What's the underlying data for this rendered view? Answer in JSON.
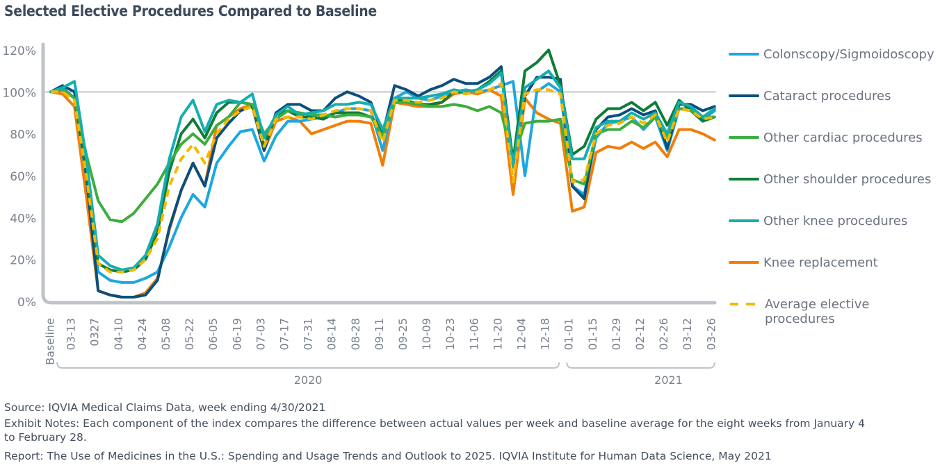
{
  "title": "Selected Elective Procedures Compared to Baseline",
  "footer": {
    "source": "Source: IQVIA Medical Claims Data, week ending 4/30/2021",
    "notes": "Exhibit Notes: Each component of the index compares the difference between actual values per week and baseline average for the eight weeks from January 4 to February 28.",
    "report": "Report: The Use of Medicines in the U.S.: Spending and Usage Trends and Outlook to 2025. IQVIA Institute for Human Data Science, May 2021"
  },
  "chart_data": {
    "type": "line",
    "title": "Selected Elective Procedures Compared to Baseline",
    "xlabel": "",
    "ylabel": "",
    "ylim": [
      0,
      120
    ],
    "yticks": [
      "0%",
      "20%",
      "40%",
      "60%",
      "80%",
      "100%",
      "120%"
    ],
    "ytick_values": [
      0,
      20,
      40,
      60,
      80,
      100,
      120
    ],
    "reference_line": 100,
    "grid": false,
    "legend_position": "right",
    "x_labels": [
      "Baseline",
      "03-13",
      "0327",
      "04-10",
      "04-24",
      "05-08",
      "05-22",
      "06-05",
      "06-19",
      "07-03",
      "07-17",
      "07-31",
      "08-14",
      "08-28",
      "09-11",
      "09-25",
      "10-09",
      "10-23",
      "11-06",
      "11-20",
      "12-04",
      "12-18",
      "01-01",
      "01-15",
      "01-29",
      "02-12",
      "02-26",
      "03-12",
      "03-26"
    ],
    "x_label_indices": [
      0,
      2,
      4,
      6,
      8,
      10,
      12,
      14,
      16,
      18,
      20,
      22,
      24,
      26,
      28,
      30,
      32,
      34,
      36,
      38,
      40,
      42,
      44,
      46,
      48,
      50,
      52,
      54,
      56
    ],
    "year_groups": [
      {
        "label": "2020",
        "from_index": 1,
        "to_index": 43
      },
      {
        "label": "2021",
        "from_index": 44,
        "to_index": 56
      }
    ],
    "series": [
      {
        "name": "Colonscopy/Sigmoidoscopy",
        "color": "#1ea7e1",
        "dashed": false,
        "values": [
          100,
          102,
          97,
          60,
          14,
          10,
          9,
          9,
          11,
          14,
          26,
          40,
          51,
          45,
          66,
          74,
          81,
          82,
          67,
          79,
          86,
          86,
          87,
          88,
          90,
          92,
          92,
          91,
          72,
          97,
          100,
          97,
          96,
          98,
          100,
          101,
          100,
          101,
          103,
          105,
          60,
          100,
          104,
          100,
          55,
          51,
          78,
          85,
          86,
          88,
          82,
          88,
          72,
          92,
          92,
          87,
          91
        ]
      },
      {
        "name": "Cataract procedures",
        "color": "#0b4f7c",
        "dashed": false,
        "values": [
          100,
          103,
          100,
          60,
          5,
          3,
          2,
          2,
          3,
          10,
          35,
          53,
          66,
          55,
          78,
          85,
          91,
          93,
          72,
          90,
          94,
          94,
          91,
          91,
          97,
          100,
          98,
          95,
          80,
          103,
          101,
          98,
          101,
          103,
          106,
          104,
          104,
          107,
          112,
          66,
          98,
          107,
          107,
          106,
          55,
          49,
          82,
          88,
          89,
          92,
          89,
          91,
          73,
          94,
          94,
          91,
          93
        ]
      },
      {
        "name": "Other cardiac procedures",
        "color": "#3cae3f",
        "dashed": false,
        "values": [
          100,
          101,
          97,
          70,
          48,
          39,
          38,
          42,
          49,
          56,
          66,
          75,
          80,
          75,
          84,
          88,
          95,
          94,
          80,
          87,
          91,
          90,
          89,
          89,
          88,
          89,
          89,
          88,
          79,
          95,
          95,
          94,
          93,
          93,
          94,
          93,
          91,
          93,
          90,
          68,
          85,
          86,
          86,
          87,
          58,
          56,
          80,
          82,
          82,
          86,
          83,
          88,
          78,
          92,
          91,
          88,
          88
        ]
      },
      {
        "name": "Other shoulder procedures",
        "color": "#0e7d36",
        "dashed": false,
        "values": [
          100,
          101,
          97,
          62,
          18,
          15,
          14,
          15,
          20,
          33,
          62,
          80,
          87,
          78,
          90,
          95,
          95,
          94,
          74,
          89,
          91,
          88,
          88,
          87,
          90,
          90,
          90,
          88,
          82,
          96,
          96,
          94,
          94,
          95,
          100,
          100,
          101,
          105,
          110,
          67,
          110,
          114,
          120,
          103,
          70,
          74,
          87,
          92,
          92,
          95,
          91,
          95,
          84,
          96,
          91,
          86,
          88
        ]
      },
      {
        "name": "Other knee procedures",
        "color": "#15aeb0",
        "dashed": false,
        "values": [
          100,
          102,
          105,
          68,
          22,
          17,
          15,
          16,
          22,
          37,
          68,
          88,
          96,
          81,
          94,
          96,
          95,
          99,
          78,
          89,
          93,
          89,
          90,
          91,
          94,
          94,
          95,
          94,
          82,
          97,
          97,
          97,
          98,
          99,
          101,
          100,
          101,
          104,
          109,
          64,
          102,
          106,
          110,
          102,
          68,
          68,
          83,
          86,
          86,
          90,
          87,
          90,
          80,
          95,
          93,
          88,
          92
        ]
      },
      {
        "name": "Knee replacement",
        "color": "#f07f09",
        "dashed": false,
        "values": [
          100,
          99,
          93,
          50,
          5,
          3,
          2,
          2,
          4,
          11,
          34,
          53,
          66,
          55,
          84,
          88,
          92,
          94,
          72,
          86,
          88,
          86,
          80,
          82,
          84,
          86,
          86,
          85,
          65,
          95,
          94,
          93,
          93,
          95,
          99,
          100,
          99,
          101,
          98,
          51,
          97,
          90,
          87,
          85,
          43,
          45,
          71,
          74,
          73,
          76,
          73,
          76,
          69,
          82,
          82,
          80,
          77
        ]
      },
      {
        "name": "Average elective procedures",
        "color": "#f4b800",
        "dashed": true,
        "values": [
          100,
          100,
          96,
          60,
          18,
          14,
          14,
          15,
          20,
          30,
          55,
          68,
          75,
          66,
          80,
          87,
          91,
          93,
          74,
          87,
          88,
          88,
          87,
          89,
          91,
          92,
          92,
          91,
          76,
          96,
          96,
          95,
          96,
          97,
          100,
          99,
          100,
          101,
          104,
          57,
          99,
          101,
          101,
          99,
          57,
          58,
          80,
          84,
          85,
          88,
          85,
          89,
          76,
          92,
          91,
          87,
          88
        ]
      }
    ]
  }
}
